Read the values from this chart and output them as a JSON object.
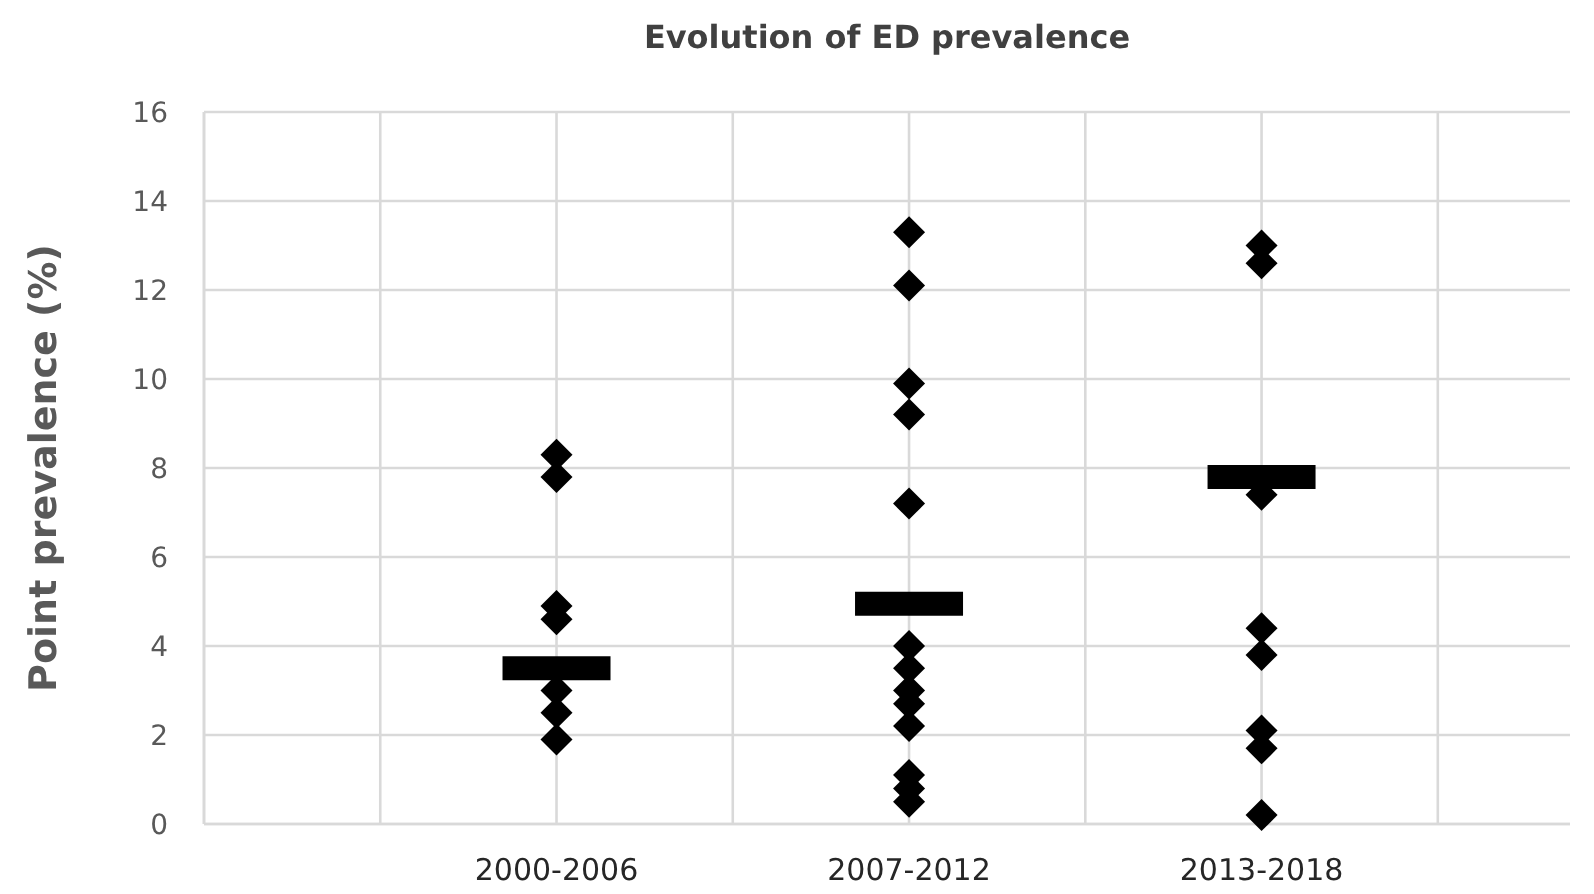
{
  "chart_data": {
    "type": "scatter",
    "title": "Evolution of ED prevalence",
    "ylabel": "Point prevalence (%)",
    "categories": [
      null,
      null,
      "2000-2006",
      null,
      "2007-2012",
      null,
      "2013-2018",
      null
    ],
    "ylim": [
      0,
      16
    ],
    "yticks": [
      0,
      2,
      4,
      6,
      8,
      10,
      12,
      14,
      16
    ],
    "grid": true,
    "series": [
      {
        "color": "#000000",
        "marker": "diamond",
        "x": [
          "2000-2006",
          "2000-2006",
          "2000-2006",
          "2000-2006",
          "2000-2006",
          "2000-2006",
          "2000-2006",
          "2007-2012",
          "2007-2012",
          "2007-2012",
          "2007-2012",
          "2007-2012",
          "2007-2012",
          "2007-2012",
          "2007-2012",
          "2007-2012",
          "2007-2012",
          "2007-2012",
          "2007-2012",
          "2007-2012",
          "2013-2018",
          "2013-2018",
          "2013-2018",
          "2013-2018",
          "2013-2018",
          "2013-2018",
          "2013-2018",
          "2013-2018"
        ],
        "values": [
          8.3,
          7.8,
          4.9,
          4.6,
          3.0,
          2.5,
          1.9,
          13.3,
          12.1,
          9.9,
          9.2,
          7.2,
          4.0,
          3.5,
          3.0,
          2.7,
          2.2,
          1.1,
          0.8,
          0.5,
          13.0,
          12.6,
          7.4,
          4.4,
          3.8,
          2.1,
          1.7,
          0.2
        ]
      },
      {
        "type": "box",
        "color": "#000000",
        "x": [
          "2000-2006",
          "2007-2012",
          "2013-2018"
        ],
        "boxes": [
          {
            "low": 3.5,
            "q1": 3.5,
            "median": 3.5,
            "q3": 3.5,
            "high": 3.5
          },
          {
            "low": 4.95,
            "q1": 4.95,
            "median": 4.95,
            "q3": 4.95,
            "high": 4.95
          },
          {
            "low": 7.8,
            "q1": 7.8,
            "median": 7.8,
            "q3": 7.8,
            "high": 7.8
          }
        ]
      }
    ]
  }
}
